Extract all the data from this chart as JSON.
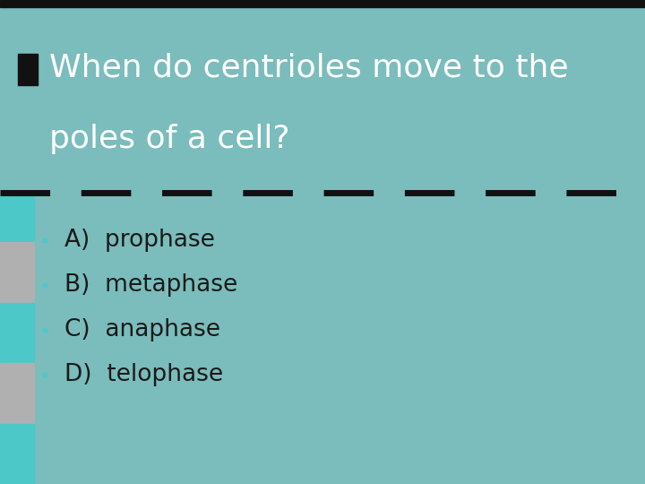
{
  "title_line1": "When do centrioles move to the",
  "title_line2": "poles of a cell?",
  "options": [
    "A)  prophase",
    "B)  metaphase",
    "C)  anaphase",
    "D)  telophase"
  ],
  "bg_color": "#7bbcbc",
  "sidebar_teal": "#4dc8c8",
  "sidebar_gray": "#b0b0b0",
  "top_bar_color": "#111111",
  "dashed_line_color": "#111111",
  "title_color": "#ffffff",
  "option_color": "#1a1a1a",
  "bullet_color": "#4dc8c8",
  "accent_sq_color": "#111111",
  "title_fontsize": 26,
  "option_fontsize": 19,
  "figsize": [
    7.2,
    5.4
  ],
  "dpi": 100
}
